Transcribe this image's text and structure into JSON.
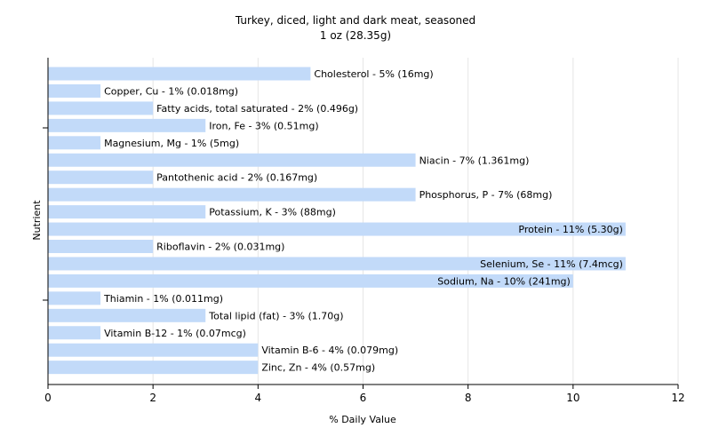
{
  "chart_data": {
    "type": "bar",
    "orientation": "horizontal",
    "title": "Turkey, diced, light and dark meat, seasoned",
    "subtitle": "1 oz (28.35g)",
    "xlabel": "% Daily Value",
    "ylabel": "Nutrient",
    "xlim": [
      0,
      12
    ],
    "xticks": [
      "0",
      "2",
      "4",
      "6",
      "8",
      "10",
      "12"
    ],
    "grid": "vertical",
    "bar_color": "#c2daf9",
    "categories": [
      "Cholesterol",
      "Copper, Cu",
      "Fatty acids, total saturated",
      "Iron, Fe",
      "Magnesium, Mg",
      "Niacin",
      "Pantothenic acid",
      "Phosphorus, P",
      "Potassium, K",
      "Protein",
      "Riboflavin",
      "Selenium, Se",
      "Sodium, Na",
      "Thiamin",
      "Total lipid (fat)",
      "Vitamin B-12",
      "Vitamin B-6",
      "Zinc, Zn"
    ],
    "values": [
      5,
      1,
      2,
      3,
      1,
      7,
      2,
      7,
      3,
      11,
      2,
      11,
      10,
      1,
      3,
      1,
      4,
      4
    ],
    "labels": [
      "Cholesterol - 5% (16mg)",
      "Copper, Cu - 1% (0.018mg)",
      "Fatty acids, total saturated - 2% (0.496g)",
      "Iron, Fe - 3% (0.51mg)",
      "Magnesium, Mg - 1% (5mg)",
      "Niacin - 7% (1.361mg)",
      "Pantothenic acid - 2% (0.167mg)",
      "Phosphorus, P - 7% (68mg)",
      "Potassium, K - 3% (88mg)",
      "Protein - 11% (5.30g)",
      "Riboflavin - 2% (0.031mg)",
      "Selenium, Se - 11% (7.4mcg)",
      "Sodium, Na - 10% (241mg)",
      "Thiamin - 1% (0.011mg)",
      "Total lipid (fat) - 3% (1.70g)",
      "Vitamin B-12 - 1% (0.07mcg)",
      "Vitamin B-6 - 4% (0.079mg)",
      "Zinc, Zn - 4% (0.57mg)"
    ]
  }
}
